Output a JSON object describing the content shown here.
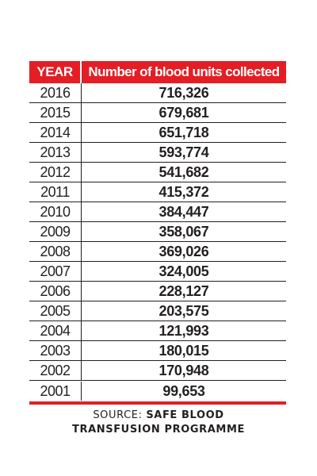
{
  "chart_data": {
    "type": "table",
    "columns": [
      "YEAR",
      "Number of blood units collected"
    ],
    "rows": [
      {
        "year": "2016",
        "value": "716,326"
      },
      {
        "year": "2015",
        "value": "679,681"
      },
      {
        "year": "2014",
        "value": "651,718"
      },
      {
        "year": "2013",
        "value": "593,774"
      },
      {
        "year": "2012",
        "value": "541,682"
      },
      {
        "year": "2011",
        "value": "415,372"
      },
      {
        "year": "2010",
        "value": "384,447"
      },
      {
        "year": "2009",
        "value": "358,067"
      },
      {
        "year": "2008",
        "value": "369,026"
      },
      {
        "year": "2007",
        "value": "324,005"
      },
      {
        "year": "2006",
        "value": "228,127"
      },
      {
        "year": "2005",
        "value": "203,575"
      },
      {
        "year": "2004",
        "value": "121,993"
      },
      {
        "year": "2003",
        "value": "180,015"
      },
      {
        "year": "2002",
        "value": "170,948"
      },
      {
        "year": "2001",
        "value": "99,653"
      }
    ]
  },
  "source": {
    "prefix": "SOURCE: ",
    "name_line1": "SAFE BLOOD",
    "name_line2": "TRANSFUSION PROGRAMME"
  },
  "colors": {
    "header_bg": "#e31e24",
    "header_text": "#ffffff",
    "body_text": "#231f20"
  }
}
